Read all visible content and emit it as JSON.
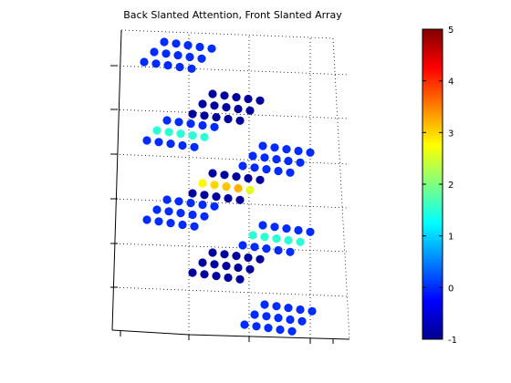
{
  "chart_data": {
    "type": "scatter",
    "title": "Back Slanted Attention, Front Slanted Array",
    "xlabel": "",
    "ylabel": "",
    "grid": true,
    "color_scale": {
      "colormap": "jet",
      "clim": [
        -1,
        5
      ],
      "tick_labels": [
        "5",
        "4",
        "3",
        "2",
        "1",
        "0",
        "-1"
      ],
      "colors": [
        "#00008f",
        "#0000ff",
        "#0080ff",
        "#00ffff",
        "#80ff80",
        "#ffff00",
        "#ff8000",
        "#ff0000",
        "#800000"
      ]
    },
    "panels": [
      {
        "name": "1",
        "tilt": 0.35,
        "rows": [
          [
            0.0,
            0.0,
            0.0,
            0.0,
            0.0
          ],
          [
            0.0,
            0.0,
            0.0,
            0.0,
            0.0
          ],
          [
            0.0,
            0.0,
            0.0,
            0.0,
            0.0
          ]
        ]
      },
      {
        "name": "2",
        "tilt": 0.35,
        "rows": [
          [
            -0.9,
            -0.9,
            -0.9,
            -0.9,
            -0.9
          ],
          [
            -0.9,
            -0.9,
            -0.9,
            -0.9,
            -0.9
          ],
          [
            -0.9,
            -0.9,
            -0.9,
            -0.9,
            -0.9
          ]
        ]
      },
      {
        "name": "3",
        "tilt": 0.35,
        "rows": [
          [
            0.0,
            0.0,
            0.0,
            0.0,
            0.0
          ],
          [
            1.5,
            1.5,
            1.5,
            1.5,
            1.5
          ],
          [
            0.0,
            0.0,
            0.0,
            0.0,
            0.0
          ]
        ]
      },
      {
        "name": "4",
        "tilt": 0.35,
        "rows": [
          [
            0.0,
            0.0,
            0.0,
            0.0,
            0.0
          ],
          [
            0.0,
            0.0,
            0.0,
            0.0,
            0.0
          ],
          [
            0.0,
            0.0,
            0.0,
            0.0,
            0.0
          ]
        ]
      },
      {
        "name": "5",
        "tilt": 0.35,
        "rows": [
          [
            -0.9,
            -0.9,
            -0.9,
            -0.9,
            -0.9
          ],
          [
            2.8,
            3.0,
            3.1,
            3.2,
            2.6
          ],
          [
            -0.9,
            -0.9,
            -0.9,
            -0.9,
            -0.9
          ]
        ]
      },
      {
        "name": "6",
        "tilt": 0.35,
        "rows": [
          [
            0.0,
            0.0,
            0.0,
            0.0,
            0.0
          ],
          [
            0.0,
            0.0,
            0.0,
            0.0,
            0.0
          ],
          [
            0.0,
            0.0,
            0.0,
            0.0,
            0.0
          ]
        ]
      },
      {
        "name": "7",
        "tilt": 0.35,
        "rows": [
          [
            0.0,
            0.0,
            0.0,
            0.0,
            0.0
          ],
          [
            1.5,
            1.5,
            1.5,
            1.5,
            1.5
          ],
          [
            0.0,
            0.0,
            0.0,
            0.0,
            0.0
          ]
        ]
      },
      {
        "name": "8",
        "tilt": 0.35,
        "rows": [
          [
            -0.9,
            -0.9,
            -0.9,
            -0.9,
            -0.9
          ],
          [
            -0.9,
            -0.9,
            -0.9,
            -0.9,
            -0.9
          ],
          [
            -0.9,
            -0.9,
            -0.9,
            -0.9,
            -0.9
          ]
        ]
      },
      {
        "name": "9",
        "tilt": 0.35,
        "rows": [
          [
            0.0,
            0.0,
            0.0,
            0.0,
            0.0
          ],
          [
            0.0,
            0.0,
            0.0,
            0.0,
            0.0
          ],
          [
            0.0,
            0.0,
            0.0,
            0.0,
            0.0
          ]
        ]
      }
    ]
  }
}
